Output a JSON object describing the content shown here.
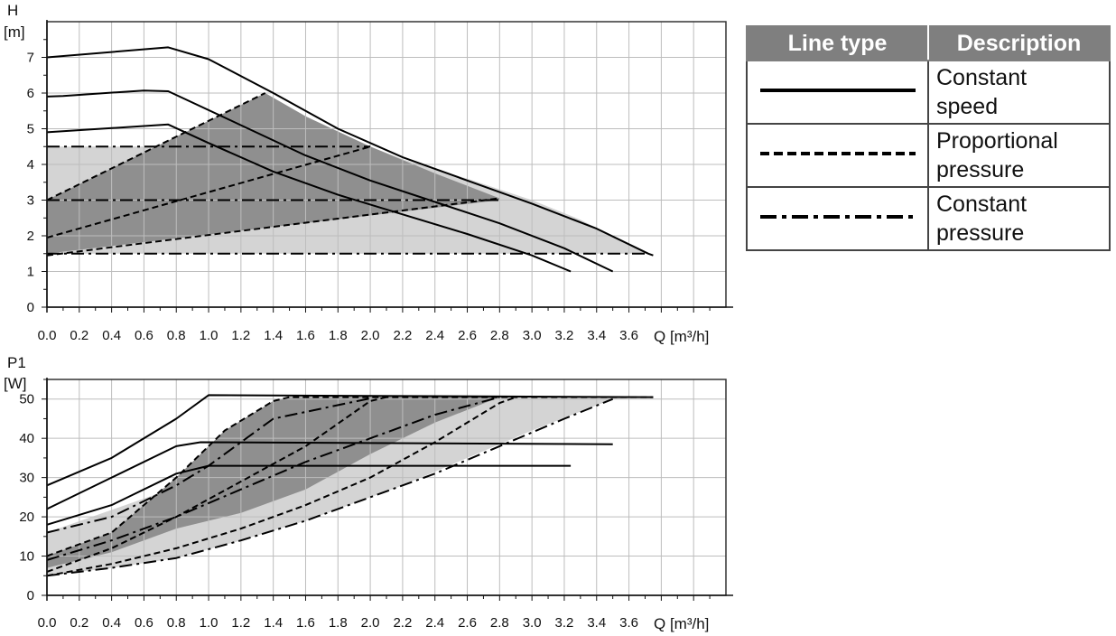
{
  "chart_data": [
    {
      "type": "line",
      "ylabel_lines": [
        "H",
        "[m]"
      ],
      "xlabel": "Q [m³/h]",
      "xlim": [
        0,
        4.2
      ],
      "ylim": [
        0,
        8
      ],
      "x_ticks": [
        "0.0",
        "0.2",
        "0.4",
        "0.6",
        "0.8",
        "1.0",
        "1.2",
        "1.4",
        "1.6",
        "1.8",
        "2.0",
        "2.2",
        "2.4",
        "2.6",
        "2.8",
        "3.0",
        "3.2",
        "3.4",
        "3.6"
      ],
      "y_ticks": [
        "0",
        "1",
        "2",
        "3",
        "4",
        "5",
        "6",
        "7"
      ],
      "grid": true,
      "areas": [
        {
          "shade": "light",
          "points": [
            [
              0,
              1.5
            ],
            [
              0,
              4.5
            ],
            [
              2.0,
              4.5
            ],
            [
              2.2,
              4.15
            ],
            [
              2.6,
              3.6
            ],
            [
              3.0,
              3.0
            ],
            [
              3.3,
              2.45
            ],
            [
              3.72,
              1.5
            ]
          ]
        },
        {
          "shade": "dark",
          "points": [
            [
              0,
              1.5
            ],
            [
              0,
              3.0
            ],
            [
              1.35,
              6.0
            ],
            [
              1.6,
              5.35
            ],
            [
              2.0,
              4.5
            ],
            [
              2.4,
              3.75
            ],
            [
              2.8,
              3.05
            ],
            [
              2.8,
              3.0
            ],
            [
              0,
              1.5
            ]
          ]
        }
      ],
      "series": [
        {
          "style": "solid",
          "points": [
            [
              0,
              7.0
            ],
            [
              0.75,
              7.28
            ],
            [
              1.0,
              6.95
            ],
            [
              1.4,
              6.0
            ],
            [
              1.8,
              5.0
            ],
            [
              2.2,
              4.2
            ],
            [
              2.6,
              3.55
            ],
            [
              3.0,
              2.9
            ],
            [
              3.4,
              2.2
            ],
            [
              3.72,
              1.5
            ],
            [
              3.75,
              1.45
            ]
          ]
        },
        {
          "style": "solid",
          "points": [
            [
              0,
              5.9
            ],
            [
              0.1,
              5.92
            ],
            [
              0.6,
              6.07
            ],
            [
              0.75,
              6.05
            ],
            [
              1.2,
              5.1
            ],
            [
              1.6,
              4.25
            ],
            [
              2.0,
              3.55
            ],
            [
              2.4,
              2.95
            ],
            [
              2.8,
              2.35
            ],
            [
              3.2,
              1.65
            ],
            [
              3.5,
              1.0
            ]
          ]
        },
        {
          "style": "solid",
          "points": [
            [
              0,
              4.9
            ],
            [
              0.75,
              5.12
            ],
            [
              1.0,
              4.6
            ],
            [
              1.4,
              3.8
            ],
            [
              1.8,
              3.15
            ],
            [
              2.2,
              2.6
            ],
            [
              2.6,
              2.05
            ],
            [
              3.0,
              1.45
            ],
            [
              3.24,
              1.0
            ]
          ]
        },
        {
          "style": "dashed",
          "points": [
            [
              0,
              3.0
            ],
            [
              1.35,
              6.0
            ]
          ]
        },
        {
          "style": "dashed",
          "points": [
            [
              0,
              1.95
            ],
            [
              2.0,
              4.5
            ]
          ]
        },
        {
          "style": "dashed",
          "points": [
            [
              0,
              1.45
            ],
            [
              2.8,
              3.05
            ]
          ]
        },
        {
          "style": "dashdot",
          "points": [
            [
              0,
              4.5
            ],
            [
              2.0,
              4.5
            ]
          ]
        },
        {
          "style": "dashdot",
          "points": [
            [
              0,
              3.0
            ],
            [
              2.8,
              3.0
            ]
          ]
        },
        {
          "style": "dashdot",
          "points": [
            [
              0,
              1.5
            ],
            [
              3.72,
              1.5
            ]
          ]
        }
      ]
    },
    {
      "type": "line",
      "ylabel_lines": [
        "P1",
        "[W]"
      ],
      "xlabel": "Q [m³/h]",
      "xlim": [
        0,
        4.2
      ],
      "ylim": [
        0,
        55
      ],
      "x_ticks": [
        "0.0",
        "0.2",
        "0.4",
        "0.6",
        "0.8",
        "1.0",
        "1.2",
        "1.4",
        "1.6",
        "1.8",
        "2.0",
        "2.2",
        "2.4",
        "2.6",
        "2.8",
        "3.0",
        "3.2",
        "3.4",
        "3.6"
      ],
      "y_ticks": [
        "0",
        "10",
        "20",
        "30",
        "40",
        "50"
      ],
      "grid": true,
      "areas": [
        {
          "shade": "light",
          "points": [
            [
              0,
              6
            ],
            [
              0,
              16
            ],
            [
              0.9,
              29
            ],
            [
              1.0,
              33
            ],
            [
              1.4,
              45
            ],
            [
              2.0,
              50.2
            ],
            [
              2.8,
              50.5
            ],
            [
              3.72,
              50.5
            ],
            [
              3.5,
              50
            ],
            [
              3.0,
              42
            ],
            [
              2.6,
              35
            ],
            [
              2.2,
              28
            ],
            [
              2.0,
              25
            ],
            [
              1.6,
              19
            ],
            [
              1.2,
              14
            ],
            [
              0.8,
              9.5
            ],
            [
              0.4,
              7
            ],
            [
              0,
              5
            ]
          ]
        },
        {
          "shade": "dark",
          "points": [
            [
              0,
              7
            ],
            [
              0,
              10
            ],
            [
              0.4,
              16
            ],
            [
              0.8,
              30
            ],
            [
              1.1,
              42
            ],
            [
              1.4,
              49.5
            ],
            [
              1.5,
              50.5
            ],
            [
              2.8,
              50.5
            ],
            [
              2.4,
              44
            ],
            [
              2.0,
              36
            ],
            [
              1.6,
              27
            ],
            [
              1.2,
              21
            ],
            [
              0.8,
              17
            ],
            [
              0.4,
              11
            ],
            [
              0,
              7
            ]
          ]
        }
      ],
      "series": [
        {
          "style": "solid",
          "points": [
            [
              0,
              28
            ],
            [
              0.4,
              35
            ],
            [
              0.8,
              45
            ],
            [
              1.0,
              51
            ],
            [
              3.75,
              50.5
            ]
          ]
        },
        {
          "style": "solid",
          "points": [
            [
              0,
              22
            ],
            [
              0.4,
              30
            ],
            [
              0.8,
              38
            ],
            [
              0.95,
              39
            ],
            [
              3.5,
              38.5
            ]
          ]
        },
        {
          "style": "solid",
          "points": [
            [
              0,
              18
            ],
            [
              0.4,
              23
            ],
            [
              0.8,
              31
            ],
            [
              1.0,
              33
            ],
            [
              3.24,
              33
            ]
          ]
        },
        {
          "style": "dashed",
          "points": [
            [
              0,
              10
            ],
            [
              0.4,
              16
            ],
            [
              0.8,
              30
            ],
            [
              1.1,
              42
            ],
            [
              1.4,
              49.5
            ],
            [
              1.5,
              50.5
            ],
            [
              3.75,
              50.5
            ]
          ]
        },
        {
          "style": "dashed",
          "points": [
            [
              0,
              6
            ],
            [
              0.4,
              12
            ],
            [
              0.8,
              20
            ],
            [
              1.2,
              29
            ],
            [
              1.6,
              38
            ],
            [
              2.0,
              49.5
            ],
            [
              2.1,
              50.5
            ]
          ]
        },
        {
          "style": "dashed",
          "points": [
            [
              0,
              5
            ],
            [
              0.4,
              8
            ],
            [
              0.8,
              12
            ],
            [
              1.2,
              17
            ],
            [
              1.6,
              23
            ],
            [
              2.0,
              30
            ],
            [
              2.4,
              39
            ],
            [
              2.8,
              49
            ],
            [
              2.9,
              50.5
            ]
          ]
        },
        {
          "style": "dashdot",
          "points": [
            [
              0,
              16
            ],
            [
              0.4,
              20
            ],
            [
              0.8,
              28
            ],
            [
              1.0,
              33
            ],
            [
              1.4,
              45
            ],
            [
              2.0,
              50.2
            ]
          ]
        },
        {
          "style": "dashdot",
          "points": [
            [
              0,
              9
            ],
            [
              0.4,
              14
            ],
            [
              0.8,
              20
            ],
            [
              1.2,
              27
            ],
            [
              1.6,
              34
            ],
            [
              2.0,
              40
            ],
            [
              2.4,
              46
            ],
            [
              2.8,
              50.5
            ]
          ]
        },
        {
          "style": "dashdot",
          "points": [
            [
              0,
              5
            ],
            [
              0.4,
              7
            ],
            [
              0.8,
              9.5
            ],
            [
              1.2,
              14
            ],
            [
              1.6,
              19
            ],
            [
              2.0,
              25
            ],
            [
              2.4,
              31
            ],
            [
              2.8,
              38
            ],
            [
              3.2,
              45
            ],
            [
              3.5,
              50
            ]
          ]
        }
      ]
    }
  ],
  "legend": {
    "header_line_type": "Line type",
    "header_description": "Description",
    "rows": [
      {
        "style": "solid",
        "description": "Constant speed"
      },
      {
        "style": "dashed",
        "description": "Proportional pressure"
      },
      {
        "style": "dashdot",
        "description": "Constant pressure"
      }
    ]
  },
  "colors": {
    "light_area": "#d4d4d4",
    "dark_area": "#8f8f8f",
    "grid": "#bdbdbd",
    "line": "#000000",
    "header_bg": "#7f7f7f"
  }
}
